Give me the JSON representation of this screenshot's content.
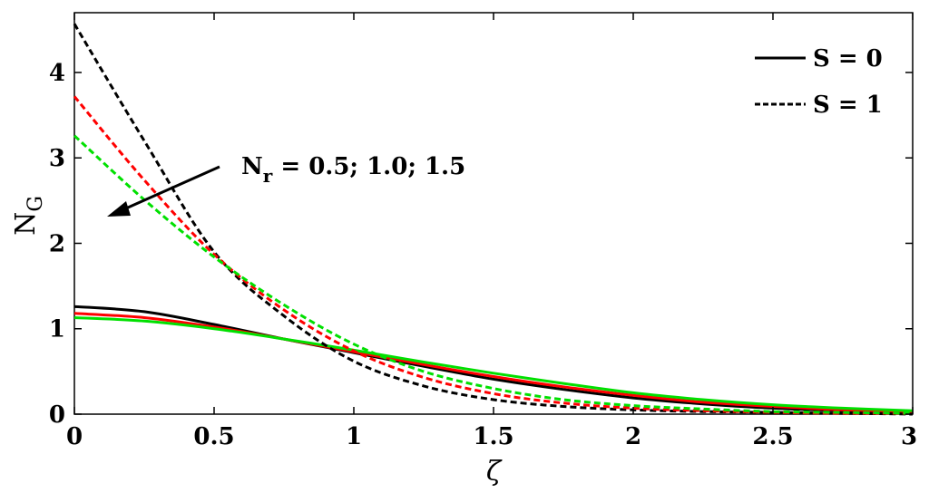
{
  "chart_data": {
    "type": "line",
    "xlabel": "ζ",
    "ylabel": {
      "main": "N",
      "sub": "G"
    },
    "xlim": [
      0,
      3
    ],
    "ylim": [
      0,
      4.7
    ],
    "xticks": [
      0,
      0.5,
      1,
      1.5,
      2,
      2.5,
      3
    ],
    "xtick_labels": [
      "0",
      "0.5",
      "1",
      "1.5",
      "2",
      "2.5",
      "3"
    ],
    "yticks": [
      0,
      1,
      2,
      3,
      4
    ],
    "ytick_labels": [
      "0",
      "1",
      "2",
      "3",
      "4"
    ],
    "grid": false,
    "legend": {
      "placement": "top-right",
      "entries": [
        {
          "label": "S = 0",
          "style": "solid"
        },
        {
          "label": "S = 1",
          "style": "dashed"
        }
      ]
    },
    "annotation": {
      "main": "N",
      "sub": "r",
      "rest": " = 0.5; 1.0; 1.5"
    },
    "colors": {
      "black": "#000000",
      "red": "#ff0000",
      "green": "#00e000"
    },
    "x": [
      0,
      0.25,
      0.5,
      0.75,
      1.0,
      1.25,
      1.5,
      1.75,
      2.0,
      2.25,
      2.5,
      2.75,
      3.0
    ],
    "series": [
      {
        "color": "black",
        "style": "solid",
        "values": [
          1.26,
          1.2,
          1.05,
          0.88,
          0.72,
          0.56,
          0.41,
          0.29,
          0.19,
          0.12,
          0.07,
          0.04,
          0.02
        ]
      },
      {
        "color": "red",
        "style": "solid",
        "values": [
          1.18,
          1.13,
          1.02,
          0.88,
          0.73,
          0.58,
          0.44,
          0.32,
          0.22,
          0.14,
          0.09,
          0.05,
          0.03
        ]
      },
      {
        "color": "green",
        "style": "solid",
        "values": [
          1.13,
          1.09,
          1.0,
          0.88,
          0.75,
          0.61,
          0.48,
          0.36,
          0.25,
          0.17,
          0.11,
          0.07,
          0.04
        ]
      },
      {
        "color": "black",
        "style": "dashed",
        "values": [
          4.57,
          3.2,
          1.9,
          1.15,
          0.62,
          0.33,
          0.17,
          0.09,
          0.05,
          0.03,
          0.02,
          0.01,
          0.0
        ]
      },
      {
        "color": "red",
        "style": "dashed",
        "values": [
          3.72,
          2.74,
          1.87,
          1.22,
          0.74,
          0.43,
          0.24,
          0.13,
          0.07,
          0.04,
          0.02,
          0.01,
          0.01
        ]
      },
      {
        "color": "green",
        "style": "dashed",
        "values": [
          3.26,
          2.51,
          1.84,
          1.28,
          0.82,
          0.5,
          0.3,
          0.17,
          0.1,
          0.06,
          0.03,
          0.02,
          0.01
        ]
      }
    ]
  }
}
